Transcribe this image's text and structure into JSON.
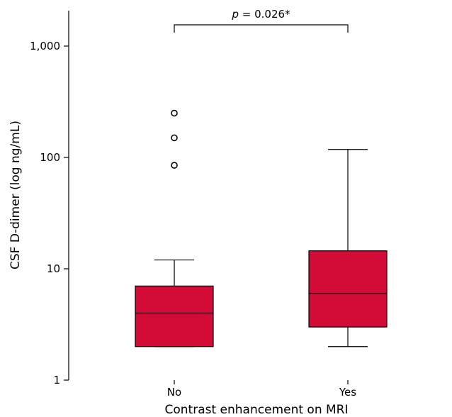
{
  "chart_data": {
    "type": "box",
    "title": "",
    "xlabel": "Contrast enhancement on MRI",
    "ylabel": "CSF D-dimer (log ng/mL)",
    "yscale": "log",
    "ylim": [
      1,
      2000
    ],
    "yticks": [
      {
        "value": 1,
        "label": "1"
      },
      {
        "value": 10,
        "label": "10"
      },
      {
        "value": 100,
        "label": "100"
      },
      {
        "value": 1000,
        "label": "1,000"
      }
    ],
    "categories": [
      "No",
      "Yes"
    ],
    "boxes": [
      {
        "category": "No",
        "whisker_low": 2,
        "q1": 2,
        "median": 4,
        "q3": 7,
        "whisker_high": 12,
        "outliers": [
          85,
          150,
          250
        ]
      },
      {
        "category": "Yes",
        "whisker_low": 2,
        "q1": 3,
        "median": 6,
        "q3": 14.5,
        "whisker_high": 118,
        "outliers": []
      }
    ],
    "box_color": "#d20b37",
    "annotation": {
      "p_symbol": "p",
      "text": " = 0.026*",
      "between": [
        "No",
        "Yes"
      ]
    }
  }
}
